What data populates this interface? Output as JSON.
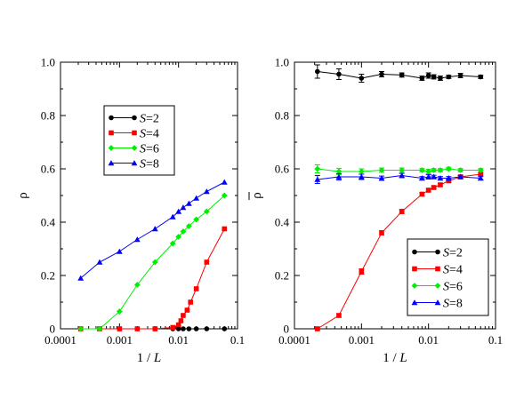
{
  "chart_data": [
    {
      "type": "line",
      "panel": "left",
      "xscale": "log",
      "xlim": [
        0.0001,
        0.1
      ],
      "ylim": [
        0,
        1
      ],
      "xticks": [
        "0.0001",
        "0.001",
        "0.01",
        "0.1"
      ],
      "yticks": [
        "0",
        "0.2",
        "0.4",
        "0.6",
        "0.8",
        "1.0"
      ],
      "xlabel_pre": "1 / ",
      "xlabel_var": "L",
      "ylabel": "ρ",
      "legend_position": "upper-left",
      "grid": false,
      "series": [
        {
          "name": "S=2",
          "var": "S",
          "val": "=2",
          "color": "#000000",
          "marker": "circle",
          "x": [
            0.00022,
            0.00046,
            0.001,
            0.002,
            0.004,
            0.008,
            0.01,
            0.012,
            0.015,
            0.02,
            0.03,
            0.06
          ],
          "y": [
            0,
            0,
            0,
            0,
            0,
            0,
            0,
            0,
            0,
            0,
            0,
            0
          ]
        },
        {
          "name": "S=4",
          "var": "S",
          "val": "=4",
          "color": "#ff0000",
          "marker": "square",
          "x": [
            0.00022,
            0.00046,
            0.001,
            0.002,
            0.004,
            0.008,
            0.01,
            0.011,
            0.012,
            0.014,
            0.016,
            0.02,
            0.03,
            0.06
          ],
          "y": [
            0,
            0,
            0,
            0,
            0,
            0.005,
            0.015,
            0.03,
            0.05,
            0.07,
            0.1,
            0.15,
            0.25,
            0.375
          ]
        },
        {
          "name": "S=6",
          "var": "S",
          "val": "=6",
          "color": "#00ee00",
          "marker": "diamond",
          "x": [
            0.00022,
            0.00046,
            0.001,
            0.002,
            0.004,
            0.008,
            0.01,
            0.012,
            0.015,
            0.02,
            0.03,
            0.06
          ],
          "y": [
            0,
            0,
            0.065,
            0.165,
            0.25,
            0.32,
            0.345,
            0.365,
            0.385,
            0.41,
            0.44,
            0.5
          ]
        },
        {
          "name": "S=8",
          "var": "S",
          "val": "=8",
          "color": "#0000ff",
          "marker": "triangle",
          "x": [
            0.00022,
            0.00046,
            0.001,
            0.002,
            0.004,
            0.008,
            0.01,
            0.012,
            0.015,
            0.02,
            0.03,
            0.06
          ],
          "y": [
            0.19,
            0.25,
            0.29,
            0.335,
            0.375,
            0.42,
            0.44,
            0.455,
            0.47,
            0.49,
            0.515,
            0.55
          ]
        }
      ]
    },
    {
      "type": "line",
      "panel": "right",
      "xscale": "log",
      "xlim": [
        0.0001,
        0.1
      ],
      "ylim": [
        0,
        1
      ],
      "xticks": [
        "0.0001",
        "0.001",
        "0.01",
        "0.1"
      ],
      "yticks": [
        "0",
        "0.2",
        "0.4",
        "0.6",
        "0.8",
        "1.0"
      ],
      "xlabel_pre": "1 / ",
      "xlabel_var": "L",
      "ylabel": "ρ",
      "ylabel_overbar": true,
      "legend_position": "lower-right",
      "grid": false,
      "error_bars": true,
      "series": [
        {
          "name": "S=2",
          "var": "S",
          "val": "=2",
          "color": "#000000",
          "marker": "circle",
          "x": [
            0.00022,
            0.00046,
            0.001,
            0.002,
            0.004,
            0.008,
            0.01,
            0.012,
            0.015,
            0.02,
            0.03,
            0.06
          ],
          "y": [
            0.965,
            0.955,
            0.94,
            0.955,
            0.952,
            0.94,
            0.95,
            0.945,
            0.94,
            0.945,
            0.95,
            0.945
          ],
          "err": [
            0.025,
            0.02,
            0.015,
            0.01,
            0.008,
            0.008,
            0.01,
            0.008,
            0.008,
            0.006,
            0.008,
            0.006
          ]
        },
        {
          "name": "S=4",
          "var": "S",
          "val": "=4",
          "color": "#ff0000",
          "marker": "square",
          "x": [
            0.00022,
            0.00046,
            0.001,
            0.002,
            0.004,
            0.008,
            0.01,
            0.012,
            0.015,
            0.02,
            0.03,
            0.06
          ],
          "y": [
            0,
            0.05,
            0.215,
            0.36,
            0.44,
            0.505,
            0.52,
            0.53,
            0.54,
            0.555,
            0.57,
            0.58
          ],
          "err": [
            0.005,
            0.006,
            0.01,
            0.008,
            0.008,
            0.006,
            0.006,
            0.006,
            0.005,
            0.005,
            0.005,
            0.005
          ]
        },
        {
          "name": "S=6",
          "var": "S",
          "val": "=6",
          "color": "#00ee00",
          "marker": "diamond",
          "x": [
            0.00022,
            0.00046,
            0.001,
            0.002,
            0.004,
            0.008,
            0.01,
            0.012,
            0.015,
            0.02,
            0.03,
            0.06
          ],
          "y": [
            0.6,
            0.59,
            0.59,
            0.595,
            0.595,
            0.595,
            0.59,
            0.595,
            0.595,
            0.6,
            0.595,
            0.595
          ],
          "err": [
            0.015,
            0.012,
            0.01,
            0.008,
            0.008,
            0.006,
            0.008,
            0.006,
            0.006,
            0.006,
            0.006,
            0.006
          ]
        },
        {
          "name": "S=8",
          "var": "S",
          "val": "=8",
          "color": "#0000ff",
          "marker": "triangle",
          "x": [
            0.00022,
            0.00046,
            0.001,
            0.002,
            0.004,
            0.008,
            0.01,
            0.012,
            0.015,
            0.02,
            0.03,
            0.06
          ],
          "y": [
            0.56,
            0.57,
            0.57,
            0.565,
            0.575,
            0.565,
            0.57,
            0.57,
            0.565,
            0.565,
            0.57,
            0.565
          ],
          "err": [
            0.015,
            0.012,
            0.01,
            0.008,
            0.008,
            0.006,
            0.008,
            0.006,
            0.006,
            0.006,
            0.006,
            0.006
          ]
        }
      ]
    }
  ]
}
